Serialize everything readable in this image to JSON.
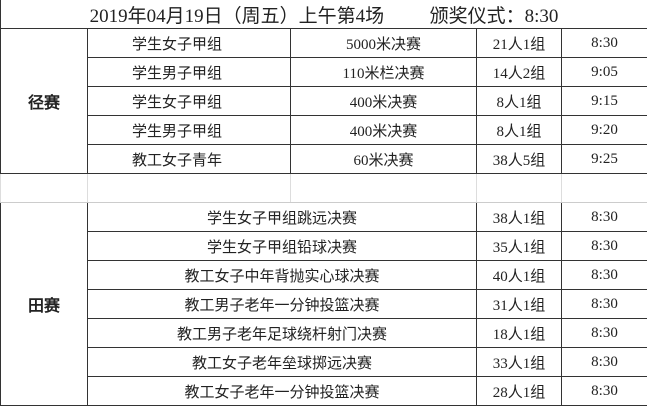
{
  "title": {
    "session": "2019年04月19日（周五）上午第4场",
    "award": "颁奖仪式：8:30"
  },
  "track": {
    "label": "径赛",
    "rows": [
      {
        "group": "学生女子甲组",
        "event": "5000米决赛",
        "entrants": "21人1组",
        "time": "8:30"
      },
      {
        "group": "学生男子甲组",
        "event": "110米栏决赛",
        "entrants": "14人2组",
        "time": "9:05"
      },
      {
        "group": "学生女子甲组",
        "event": "400米决赛",
        "entrants": "8人1组",
        "time": "9:15"
      },
      {
        "group": "学生男子甲组",
        "event": "400米决赛",
        "entrants": "8人1组",
        "time": "9:20"
      },
      {
        "group": "教工女子青年",
        "event": "60米决赛",
        "entrants": "38人5组",
        "time": "9:25"
      }
    ]
  },
  "field": {
    "label": "田赛",
    "rows": [
      {
        "event": "学生女子甲组跳远决赛",
        "entrants": "38人1组",
        "time": "8:30"
      },
      {
        "event": "学生女子甲组铅球决赛",
        "entrants": "35人1组",
        "time": "8:30"
      },
      {
        "event": "教工女子中年背抛实心球决赛",
        "entrants": "40人1组",
        "time": "8:30"
      },
      {
        "event": "教工男子老年一分钟投篮决赛",
        "entrants": "31人1组",
        "time": "8:30"
      },
      {
        "event": "教工男子老年足球绕杆射门决赛",
        "entrants": "18人1组",
        "time": "8:30"
      },
      {
        "event": "教工女子老年垒球掷远决赛",
        "entrants": "33人1组",
        "time": "8:30"
      },
      {
        "event": "教工女子老年一分钟投篮决赛",
        "entrants": "28人1组",
        "time": "8:30"
      }
    ]
  }
}
